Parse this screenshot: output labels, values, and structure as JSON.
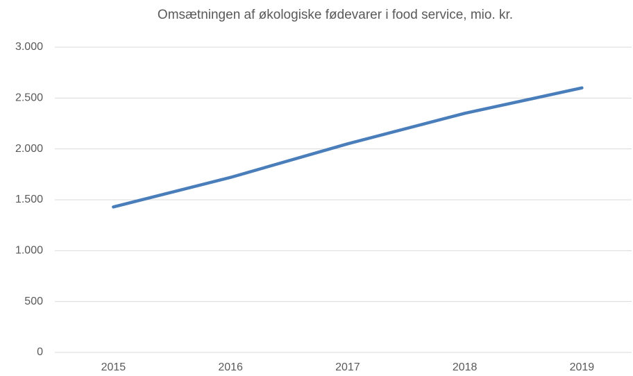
{
  "chart_data": {
    "type": "line",
    "title": "Omsætningen af økologiske fødevarer i food service, mio. kr.",
    "categories": [
      "2015",
      "2016",
      "2017",
      "2018",
      "2019"
    ],
    "values": [
      1430,
      1720,
      2050,
      2350,
      2600
    ],
    "color": "#4a7ebb",
    "ylim": [
      0,
      3000
    ],
    "yticks": [
      0,
      500,
      {
        "value": 1000,
        "label": "1.000"
      },
      {
        "value": 1500,
        "label": "1.500"
      },
      {
        "value": 2000,
        "label": "2.000"
      },
      {
        "value": 2500,
        "label": "2.500"
      },
      {
        "value": 3000,
        "label": "3.000"
      }
    ],
    "grid": true
  }
}
